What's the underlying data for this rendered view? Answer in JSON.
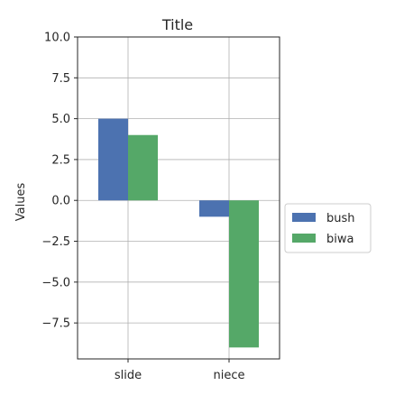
{
  "chart_data": {
    "type": "bar",
    "title": "Title",
    "xlabel": "",
    "ylabel": "Values",
    "categories": [
      "slide",
      "niece"
    ],
    "series": [
      {
        "name": "bush",
        "values": [
          5,
          -1
        ],
        "color": "#4c72b0"
      },
      {
        "name": "biwa",
        "values": [
          4,
          -9
        ],
        "color": "#55a868"
      }
    ],
    "ylim": [
      -9.7,
      10
    ],
    "yticks": [
      -7.5,
      -5.0,
      -2.5,
      0.0,
      2.5,
      5.0,
      7.5,
      10.0
    ],
    "ytick_labels": [
      "−7.5",
      "−5.0",
      "−2.5",
      "0.0",
      "2.5",
      "5.0",
      "7.5",
      "10.0"
    ],
    "grid": true,
    "legend_position": "right"
  }
}
